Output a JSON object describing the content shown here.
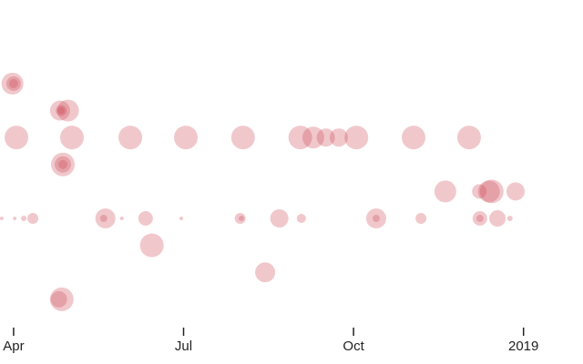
{
  "chart_data": {
    "type": "scatter",
    "x": [
      2.98,
      3.0,
      3.0,
      3.82,
      3.96,
      3.84,
      3.84,
      3.05,
      4.03,
      5.06,
      6.04,
      7.05,
      8.06,
      8.29,
      8.51,
      8.74,
      9.05,
      10.06,
      11.04,
      3.87,
      3.87,
      3.87,
      10.62,
      11.22,
      11.39,
      11.44,
      11.86,
      2.79,
      3.02,
      3.18,
      3.34,
      4.62,
      4.59,
      4.91,
      5.33,
      5.96,
      7.0,
      7.02,
      7.69,
      8.08,
      9.4,
      9.4,
      10.19,
      11.23,
      11.23,
      11.54,
      11.76,
      5.44,
      7.44,
      3.85,
      3.8
    ],
    "values": [
      1,
      1,
      1,
      2,
      2,
      2,
      2,
      3,
      3,
      3,
      3,
      3,
      3,
      3,
      3,
      3,
      3,
      3,
      3,
      4,
      4,
      4,
      5,
      5,
      5,
      5,
      5,
      6,
      6,
      6,
      6,
      6,
      6,
      6,
      6,
      6,
      6,
      6,
      6,
      6,
      6,
      6,
      6,
      6,
      6,
      6,
      6,
      7,
      8,
      9,
      9
    ],
    "sizes": [
      12,
      8,
      5,
      11,
      12,
      6,
      4,
      13,
      13,
      13,
      13,
      13,
      13,
      12,
      10,
      10,
      13,
      13,
      13,
      13,
      9,
      5,
      12,
      8,
      12,
      13,
      10,
      2,
      2,
      3,
      6,
      11,
      4,
      2,
      8,
      2,
      6,
      3,
      10,
      5,
      11,
      4,
      6,
      8,
      4,
      9,
      3,
      13,
      11,
      13,
      9
    ],
    "color": "#cc4a55",
    "opacity": 0.3,
    "xlim": [
      2.76,
      13.05
    ],
    "xticks": [
      {
        "value": 3,
        "label": "Apr"
      },
      {
        "value": 6,
        "label": "Jul"
      },
      {
        "value": 9,
        "label": "Oct"
      },
      {
        "value": 12,
        "label": "2019"
      }
    ],
    "ylim": [
      -2.1,
      11.4
    ]
  }
}
